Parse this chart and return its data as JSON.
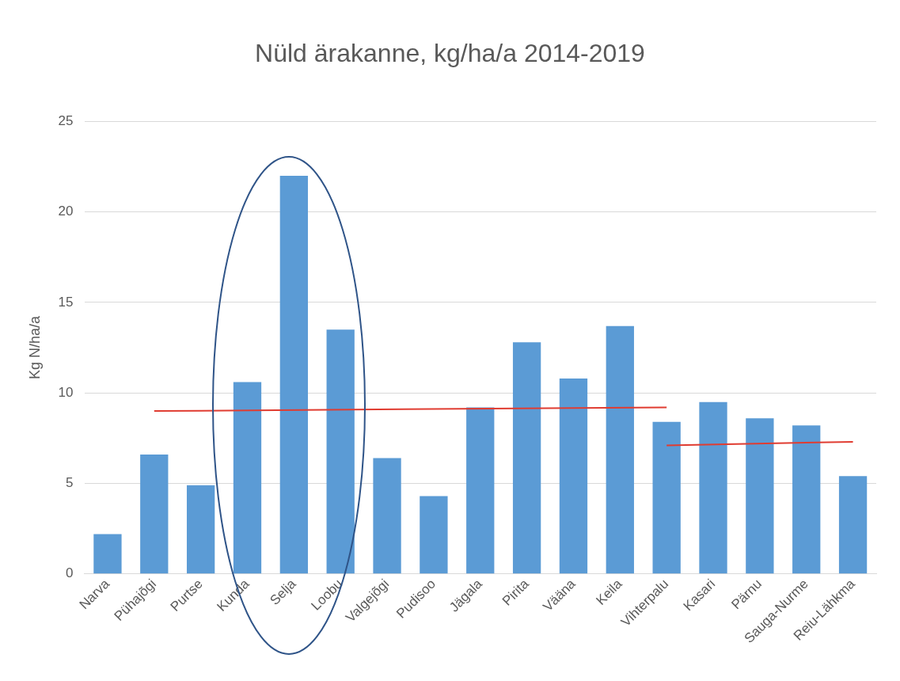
{
  "chart_data": {
    "type": "bar",
    "title": "Nüld ärakanne, kg/ha/a 2014-2019",
    "ylabel": "Kg N/ha/a",
    "categories": [
      "Narva",
      "Pühajõgi",
      "Purtse",
      "Kunda",
      "Selja",
      "Loobu",
      "Valgejõgi",
      "Pudisoo",
      "Jägala",
      "Pirita",
      "Vääna",
      "Keila",
      "Vihterpalu",
      "Kasari",
      "Pärnu",
      "Sauga-Nurme",
      "Reiu-Lähkma"
    ],
    "series": [
      {
        "color": "#5b9bd5",
        "values": [
          2.2,
          6.6,
          4.9,
          10.6,
          22.0,
          13.5,
          6.4,
          4.3,
          9.2,
          12.8,
          10.8,
          13.7,
          8.4,
          9.5,
          8.6,
          8.2,
          5.4
        ]
      },
      {
        "type": "line",
        "color": "#e03c31",
        "marker": "none",
        "values": [
          null,
          9.0,
          null,
          null,
          null,
          null,
          null,
          null,
          null,
          null,
          null,
          null,
          9.2,
          null,
          null,
          null,
          null
        ]
      },
      {
        "type": "line",
        "color": "#e03c31",
        "marker": "none",
        "values": [
          null,
          null,
          null,
          null,
          null,
          null,
          null,
          null,
          null,
          null,
          null,
          null,
          7.1,
          null,
          null,
          null,
          7.3
        ]
      }
    ],
    "ylim": [
      0,
      25
    ],
    "yticks": [
      0,
      5,
      10,
      15,
      20,
      25
    ],
    "grid": "y",
    "legend": false
  }
}
